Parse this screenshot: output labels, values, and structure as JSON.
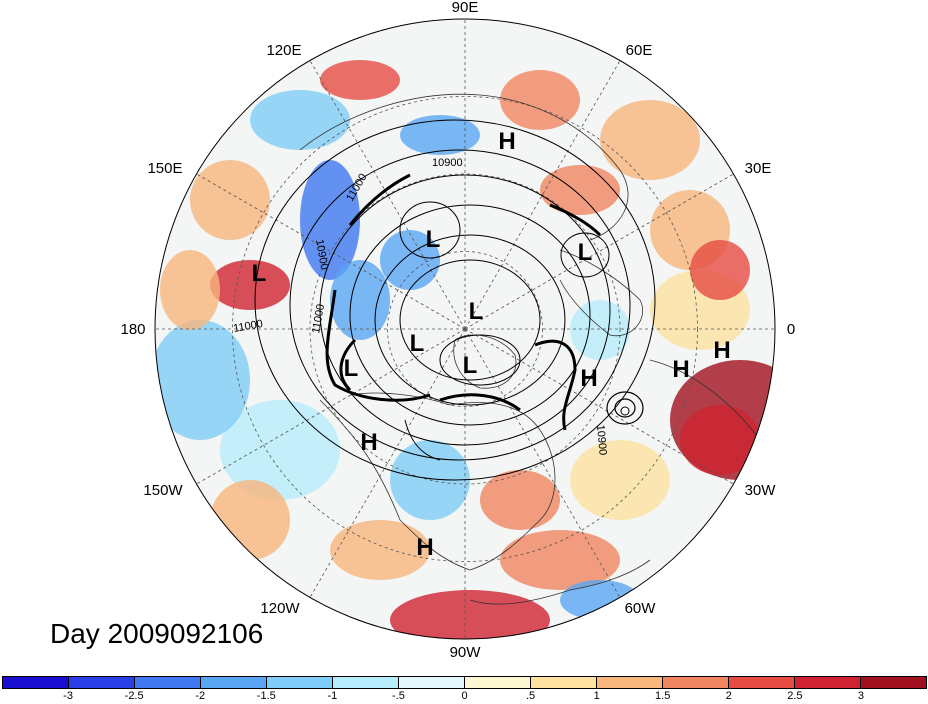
{
  "title": "Day 2009092106",
  "longitude_labels": [
    "90E",
    "60E",
    "30E",
    "0",
    "30W",
    "60W",
    "90W",
    "120W",
    "150W",
    "180",
    "150E",
    "120E"
  ],
  "pressure_centers": [
    {
      "label": "H"
    },
    {
      "label": "L"
    },
    {
      "label": "L"
    },
    {
      "label": "L"
    },
    {
      "label": "L"
    },
    {
      "label": "L"
    },
    {
      "label": "L"
    },
    {
      "label": "L"
    },
    {
      "label": "H"
    },
    {
      "label": "H"
    },
    {
      "label": "H"
    },
    {
      "label": "H"
    },
    {
      "label": "H"
    }
  ],
  "contour_labels": [
    "10900",
    "11000",
    "10900",
    "11000",
    "11000",
    "10900"
  ],
  "colorbar": {
    "colors": [
      "#1a0fd0",
      "#2a3ee8",
      "#3f78f0",
      "#5aa6f4",
      "#7fcdf8",
      "#b6ecfb",
      "#e4f8fb",
      "#fdf6d2",
      "#fde2a0",
      "#f8b57c",
      "#f08662",
      "#e64c44",
      "#cf2331",
      "#a0101e"
    ],
    "tick_labels": [
      "-3",
      "-2.5",
      "-2",
      "-1.5",
      "-1",
      "-.5",
      "0",
      ".5",
      "1",
      "1.5",
      "2",
      "2.5",
      "3"
    ]
  }
}
